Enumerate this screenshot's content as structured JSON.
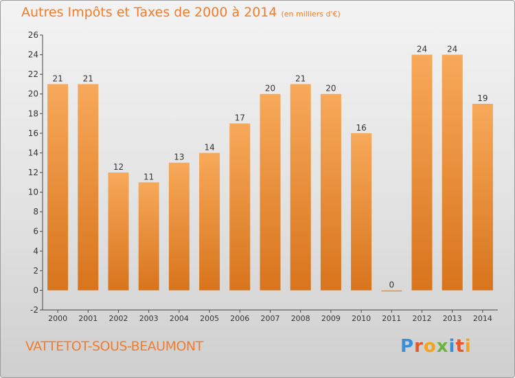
{
  "brand": "Proxiti",
  "commune": "VATTETOT-SOUS-BEAUMONT",
  "chart_data": {
    "type": "bar",
    "title": "Autres Impôts et Taxes de 2000 à 2014",
    "unit": "(en milliers d'€)",
    "categories": [
      "2000",
      "2001",
      "2002",
      "2003",
      "2004",
      "2005",
      "2006",
      "2007",
      "2008",
      "2009",
      "2010",
      "2011",
      "2012",
      "2013",
      "2014"
    ],
    "values": [
      21,
      21,
      12,
      11,
      13,
      14,
      17,
      20,
      21,
      20,
      16,
      0,
      24,
      24,
      19
    ],
    "ylim": [
      -2,
      26
    ],
    "yticks": [
      -2,
      0,
      2,
      4,
      6,
      8,
      10,
      12,
      14,
      16,
      18,
      20,
      22,
      24,
      26
    ],
    "grid": false,
    "bar_color": "#f28a2e",
    "text_color": "#f07c2c"
  }
}
